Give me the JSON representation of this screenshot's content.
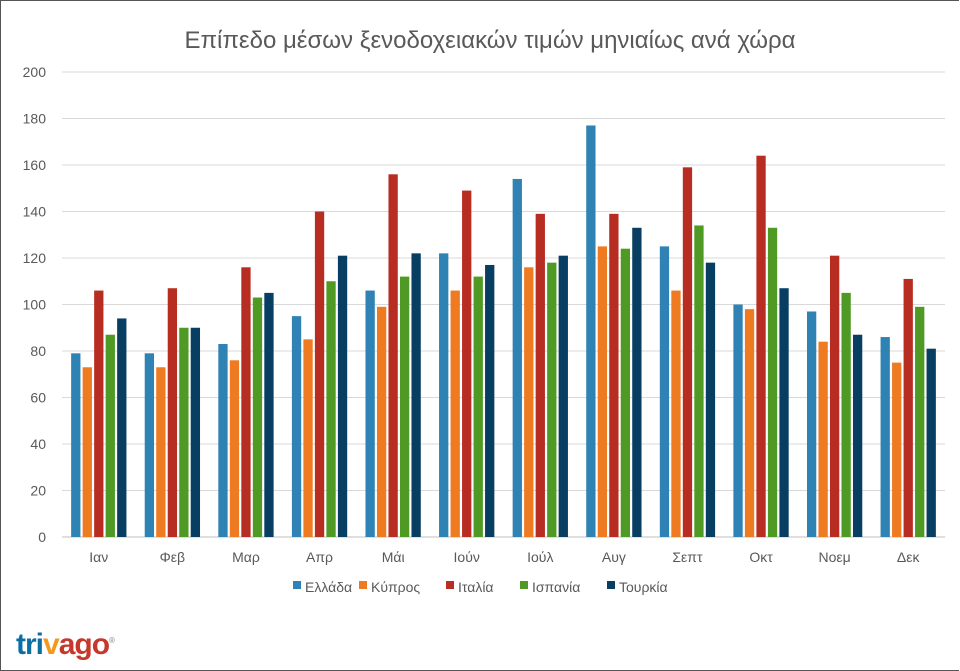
{
  "chart_data": {
    "type": "bar",
    "title": "Επίπεδο μέσων ξενοδοχειακών τιμών μηνιαίως ανά χώρα",
    "xlabel": "",
    "ylabel": "",
    "ylim": [
      0,
      200
    ],
    "yticks": [
      0,
      20,
      40,
      60,
      80,
      100,
      120,
      140,
      160,
      180,
      200
    ],
    "grid": true,
    "legend": "bottom",
    "categories": [
      "Ιαν",
      "Φεβ",
      "Μαρ",
      "Απρ",
      "Μάι",
      "Ιούν",
      "Ιούλ",
      "Αυγ",
      "Σεπτ",
      "Οκτ",
      "Νοεμ",
      "Δεκ"
    ],
    "series": [
      {
        "name": "Ελλάδα",
        "color": "#2e82b4",
        "values": [
          79,
          79,
          83,
          95,
          106,
          122,
          154,
          177,
          125,
          100,
          97,
          86
        ]
      },
      {
        "name": "Κύπρος",
        "color": "#ee7a22",
        "values": [
          73,
          73,
          76,
          85,
          99,
          106,
          116,
          125,
          106,
          98,
          84,
          75
        ]
      },
      {
        "name": "Ιταλία",
        "color": "#b72d22",
        "values": [
          106,
          107,
          116,
          140,
          156,
          149,
          139,
          139,
          159,
          164,
          121,
          111
        ]
      },
      {
        "name": "Ισπανία",
        "color": "#4e9a25",
        "values": [
          87,
          90,
          103,
          110,
          112,
          112,
          118,
          124,
          134,
          133,
          105,
          99
        ]
      },
      {
        "name": "Τουρκία",
        "color": "#083e62",
        "values": [
          94,
          90,
          105,
          121,
          122,
          117,
          121,
          133,
          118,
          107,
          87,
          81
        ]
      }
    ]
  },
  "logo": {
    "text_parts": [
      "tri",
      "v",
      "ago"
    ],
    "colors": [
      "#0b6fa4",
      "#f29a1e",
      "#c6372c"
    ]
  }
}
